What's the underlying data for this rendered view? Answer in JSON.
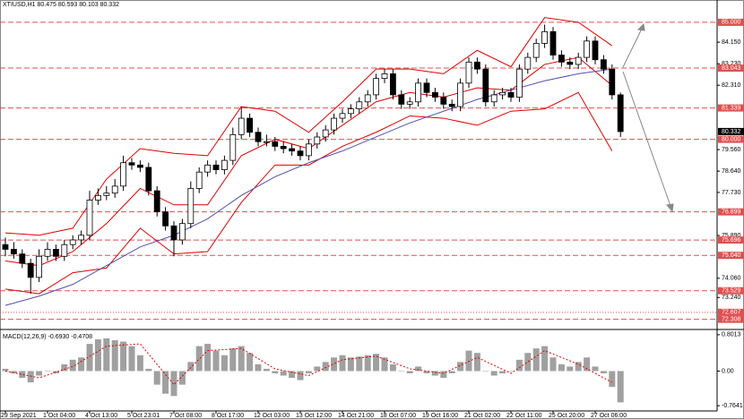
{
  "chart_data": [
    {
      "type": "candlestick",
      "title": "XTIUSD,H1  80.475 80.593 80.103 80.332",
      "categories": [
        "29 Sep 2021",
        null,
        null,
        null,
        null,
        "1 Oct 04:00",
        null,
        null,
        null,
        null,
        "4 Oct 13:00",
        null,
        null,
        null,
        null,
        "5 Oct 23:01",
        null,
        null,
        null,
        null,
        "7 Oct 08:00",
        null,
        null,
        null,
        null,
        "8 Oct 17:00",
        null,
        null,
        null,
        null,
        "12 Oct 03:00",
        null,
        null,
        null,
        null,
        "13 Oct 12:00",
        null,
        null,
        null,
        null,
        "14 Oct 21:00",
        null,
        null,
        null,
        null,
        "18 Oct 07:00",
        null,
        null,
        null,
        null,
        "19 Oct 16:00",
        null,
        null,
        null,
        null,
        "21 Oct 02:00",
        null,
        null,
        null,
        null,
        "22 Oct 11:00",
        null,
        null,
        null,
        null,
        "25 Oct 20:00",
        null,
        null,
        null,
        null,
        "27 Oct 06:00",
        null,
        null,
        null
      ],
      "open": [
        75.5,
        75.3,
        75.1,
        74.7,
        74.1,
        75.0,
        75.3,
        75.0,
        75.5,
        75.7,
        75.9,
        77.4,
        77.6,
        77.7,
        78.0,
        79.0,
        78.9,
        78.8,
        77.8,
        76.9,
        76.3,
        75.7,
        76.4,
        77.9,
        78.6,
        78.9,
        78.7,
        79.1,
        80.2,
        80.9,
        80.3,
        79.9,
        79.9,
        79.7,
        79.6,
        79.5,
        79.3,
        79.8,
        80.1,
        80.4,
        80.9,
        81.1,
        81.3,
        81.6,
        81.9,
        82.6,
        82.8,
        81.9,
        81.5,
        81.6,
        82.4,
        82.0,
        81.8,
        81.5,
        81.4,
        82.4,
        83.3,
        83.0,
        81.6,
        81.9,
        82.0,
        81.8,
        83.0,
        83.5,
        84.1,
        84.6,
        83.6,
        83.3,
        83.2,
        83.5,
        84.2,
        83.4,
        83.0,
        81.9
      ],
      "high": [
        75.8,
        75.6,
        75.3,
        74.9,
        75.3,
        75.6,
        75.5,
        75.7,
        75.9,
        76.1,
        77.8,
        77.9,
        78.0,
        78.3,
        79.3,
        79.2,
        79.1,
        79.0,
        78.0,
        77.1,
        76.5,
        76.6,
        78.2,
        78.8,
        79.1,
        79.1,
        79.3,
        80.5,
        81.4,
        81.1,
        80.5,
        80.2,
        80.1,
        79.9,
        79.8,
        79.7,
        80.0,
        80.3,
        80.6,
        81.1,
        81.3,
        81.5,
        81.8,
        82.1,
        82.8,
        83.0,
        83.0,
        82.1,
        81.8,
        82.6,
        82.6,
        82.2,
        82.0,
        81.7,
        82.6,
        83.5,
        83.5,
        83.2,
        82.1,
        82.2,
        82.2,
        83.2,
        83.7,
        84.3,
        84.9,
        84.8,
        83.8,
        83.5,
        83.7,
        84.4,
        84.4,
        83.6,
        83.2,
        82.0
      ],
      "low": [
        75.0,
        74.9,
        74.5,
        73.4,
        73.9,
        74.8,
        74.8,
        74.8,
        75.3,
        75.5,
        75.7,
        77.2,
        77.4,
        77.5,
        77.8,
        78.7,
        78.6,
        77.6,
        76.7,
        76.1,
        75.0,
        75.5,
        76.2,
        77.7,
        78.4,
        78.5,
        78.5,
        78.9,
        80.0,
        80.1,
        79.7,
        79.7,
        79.5,
        79.4,
        79.3,
        79.1,
        79.1,
        79.6,
        79.9,
        80.2,
        80.7,
        80.9,
        81.1,
        81.4,
        81.7,
        82.4,
        81.7,
        81.3,
        81.3,
        81.4,
        81.8,
        81.6,
        81.3,
        81.2,
        81.2,
        82.2,
        82.8,
        81.4,
        81.4,
        81.7,
        81.6,
        81.6,
        82.8,
        83.3,
        83.9,
        83.4,
        83.1,
        83.0,
        83.0,
        83.3,
        83.2,
        82.8,
        81.7,
        80.1
      ],
      "close": [
        75.3,
        75.1,
        74.7,
        74.1,
        75.0,
        75.3,
        75.0,
        75.5,
        75.7,
        75.9,
        77.4,
        77.6,
        77.7,
        78.0,
        79.0,
        78.9,
        78.8,
        77.8,
        76.9,
        76.3,
        75.7,
        76.4,
        77.9,
        78.6,
        78.9,
        78.7,
        79.1,
        80.2,
        80.9,
        80.3,
        79.9,
        79.9,
        79.7,
        79.6,
        79.5,
        79.3,
        79.8,
        80.1,
        80.4,
        80.9,
        81.1,
        81.3,
        81.6,
        81.9,
        82.6,
        82.8,
        81.9,
        81.5,
        81.6,
        82.4,
        82.0,
        81.8,
        81.5,
        81.4,
        82.4,
        83.3,
        83.0,
        81.6,
        81.9,
        82.0,
        81.8,
        83.0,
        83.5,
        84.1,
        84.6,
        83.6,
        83.3,
        83.2,
        83.5,
        84.2,
        83.4,
        83.0,
        81.9,
        80.33
      ],
      "series": [
        {
          "color": "#e00000",
          "x": [
            0,
            4,
            8,
            12,
            16,
            20,
            24,
            28,
            32,
            36,
            40,
            44,
            48,
            52,
            56,
            60,
            64,
            68,
            72
          ],
          "values": [
            76.0,
            75.9,
            76.2,
            78.3,
            79.6,
            79.4,
            79.3,
            81.4,
            81.2,
            80.3,
            81.6,
            83.0,
            83.0,
            82.8,
            83.8,
            83.1,
            85.2,
            85.0,
            84.0
          ]
        },
        {
          "color": "#e00000",
          "x": [
            0,
            4,
            8,
            12,
            16,
            20,
            24,
            28,
            32,
            36,
            40,
            44,
            48,
            52,
            56,
            60,
            64,
            68,
            72
          ],
          "values": [
            74.8,
            74.6,
            75.2,
            76.4,
            77.9,
            77.2,
            77.2,
            79.3,
            80.0,
            79.6,
            80.6,
            81.6,
            82.0,
            81.8,
            82.2,
            82.1,
            83.2,
            83.5,
            82.3
          ]
        },
        {
          "color": "#e00000",
          "x": [
            0,
            4,
            8,
            12,
            16,
            20,
            24,
            28,
            32,
            36,
            40,
            44,
            48,
            52,
            56,
            60,
            64,
            68,
            72
          ],
          "values": [
            73.6,
            73.4,
            74.3,
            74.5,
            76.2,
            75.1,
            75.2,
            77.3,
            78.9,
            78.9,
            79.7,
            80.3,
            81.0,
            80.9,
            80.6,
            81.2,
            81.3,
            82.0,
            79.5
          ]
        },
        {
          "color": "#5050b0",
          "x": [
            0,
            4,
            8,
            12,
            16,
            20,
            24,
            28,
            32,
            36,
            40,
            44,
            48,
            52,
            56,
            60,
            64,
            68,
            72
          ],
          "values": [
            72.9,
            73.3,
            73.8,
            74.6,
            75.4,
            75.9,
            76.6,
            77.6,
            78.4,
            79.0,
            79.5,
            80.1,
            80.7,
            81.2,
            81.7,
            82.1,
            82.5,
            82.8,
            83.0
          ]
        }
      ],
      "ylim": [
        71.95,
        85.57
      ],
      "yticks": [
        {
          "value": 84.15,
          "label": "84.150"
        },
        {
          "value": 83.23,
          "label": "83.230"
        },
        {
          "value": 82.31,
          "label": "82.310"
        },
        {
          "value": 79.56,
          "label": "79.560"
        },
        {
          "value": 78.64,
          "label": "78.640"
        },
        {
          "value": 77.73,
          "label": "77.730"
        },
        {
          "value": 75.89,
          "label": "75.890"
        },
        {
          "value": 74.06,
          "label": "74.060"
        },
        {
          "value": 73.24,
          "label": "73.240"
        }
      ],
      "levels": [
        {
          "value": 85,
          "label": "85.000"
        },
        {
          "value": 83.043,
          "label": "83.043"
        },
        {
          "value": 81.339,
          "label": "81.339"
        },
        {
          "value": 80,
          "label": "80.000"
        },
        {
          "value": 76.899,
          "label": "76.899"
        },
        {
          "value": 75.696,
          "label": "75.696"
        },
        {
          "value": 75.04,
          "label": "75.040"
        },
        {
          "value": 73.529,
          "label": "73.529"
        },
        {
          "value": 72.607,
          "label": "72.607"
        },
        {
          "value": 72.308,
          "label": "72.308"
        }
      ],
      "level_color": "#e05050",
      "current_price": {
        "value": 80.332,
        "label": "80.332"
      }
    },
    {
      "type": "bar",
      "title": "MACD(12,26,9) -0.6930 -0.4708",
      "color": "#a0a0a0",
      "values": [
        0.05,
        -0.05,
        -0.15,
        -0.25,
        -0.1,
        0.0,
        -0.05,
        0.15,
        0.25,
        0.3,
        0.6,
        0.7,
        0.72,
        0.68,
        0.65,
        0.55,
        0.35,
        0.05,
        -0.3,
        -0.5,
        -0.55,
        -0.3,
        0.2,
        0.55,
        0.6,
        0.45,
        0.35,
        0.5,
        0.55,
        0.4,
        0.15,
        0.05,
        -0.05,
        -0.1,
        -0.15,
        -0.2,
        -0.05,
        0.1,
        0.2,
        0.3,
        0.35,
        0.3,
        0.32,
        0.35,
        0.38,
        0.3,
        0.15,
        0.0,
        -0.05,
        0.1,
        -0.05,
        -0.1,
        -0.15,
        -0.05,
        0.2,
        0.45,
        0.4,
        0.0,
        -0.1,
        -0.05,
        0.0,
        0.25,
        0.4,
        0.5,
        0.55,
        0.3,
        0.15,
        0.1,
        0.2,
        0.3,
        0.1,
        -0.05,
        -0.35,
        -0.69
      ],
      "series": [
        {
          "color": "#e00000",
          "x": [
            0,
            4,
            8,
            12,
            16,
            20,
            24,
            28,
            32,
            36,
            40,
            44,
            48,
            52,
            56,
            60,
            64,
            68,
            72
          ],
          "values": [
            0.0,
            -0.15,
            0.1,
            0.55,
            0.6,
            -0.3,
            0.45,
            0.5,
            0.05,
            -0.1,
            0.25,
            0.33,
            0.05,
            -0.05,
            0.3,
            -0.05,
            0.45,
            0.15,
            -0.25
          ]
        }
      ],
      "ylim": [
        -0.86,
        0.878
      ],
      "yticks": [
        0.8013,
        {
          "value": 0,
          "label": "0.00"
        },
        -0.7641
      ]
    }
  ]
}
